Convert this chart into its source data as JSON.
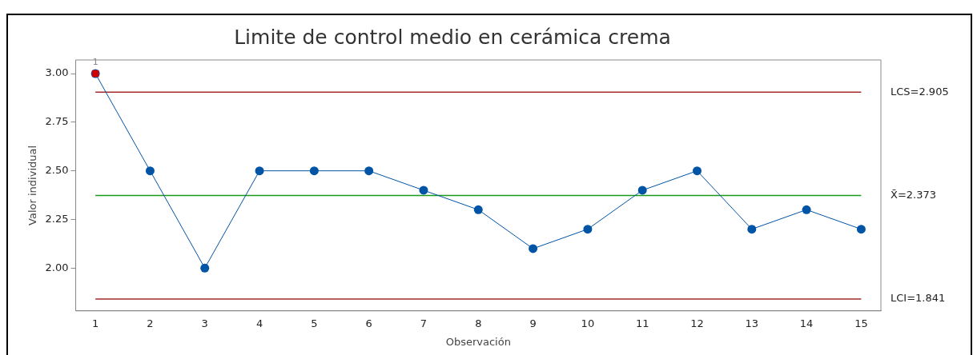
{
  "chart_data": {
    "type": "line",
    "title": "Limite de control medio en cerámica crema",
    "xlabel": "Observación",
    "ylabel": "Valor individual",
    "x": [
      1,
      2,
      3,
      4,
      5,
      6,
      7,
      8,
      9,
      10,
      11,
      12,
      13,
      14,
      15
    ],
    "series": [
      {
        "type": "line",
        "color": "#0054a6",
        "marker": "circle",
        "values": [
          3.0,
          2.5,
          2.0,
          2.5,
          2.5,
          2.5,
          2.4,
          2.3,
          2.1,
          2.2,
          2.4,
          2.5,
          2.2,
          2.3,
          2.2
        ]
      },
      {
        "type": "scatter",
        "color": "#d40000",
        "marker": "square",
        "x": [
          1
        ],
        "values": [
          3.0
        ]
      }
    ],
    "xlim": [
      0.64,
      15.36
    ],
    "xticks": [
      1,
      2,
      3,
      4,
      5,
      6,
      7,
      8,
      9,
      10,
      11,
      12,
      13,
      14,
      15
    ],
    "ylim": [
      1.78,
      3.07
    ],
    "yticks": [
      {
        "value": 2,
        "label": "2.00"
      },
      {
        "value": 2.25,
        "label": "2.25"
      },
      {
        "value": 2.5,
        "label": "2.50"
      },
      {
        "value": 2.75,
        "label": "2.75"
      },
      {
        "value": 3,
        "label": "3.00"
      }
    ],
    "ref_lines": [
      {
        "axis": "y",
        "value": 2.905,
        "label": "LCS=2.905",
        "color": "#a52a2a"
      },
      {
        "axis": "y",
        "value": 2.373,
        "label": "X̄=2.373",
        "color": "#1a9a1a"
      },
      {
        "axis": "y",
        "value": 1.841,
        "label": "LCI=1.841",
        "color": "#a52a2a"
      }
    ],
    "annotations": [
      {
        "text": "1",
        "x": 1,
        "y": 3.0
      }
    ],
    "grid": false,
    "legend": false
  }
}
